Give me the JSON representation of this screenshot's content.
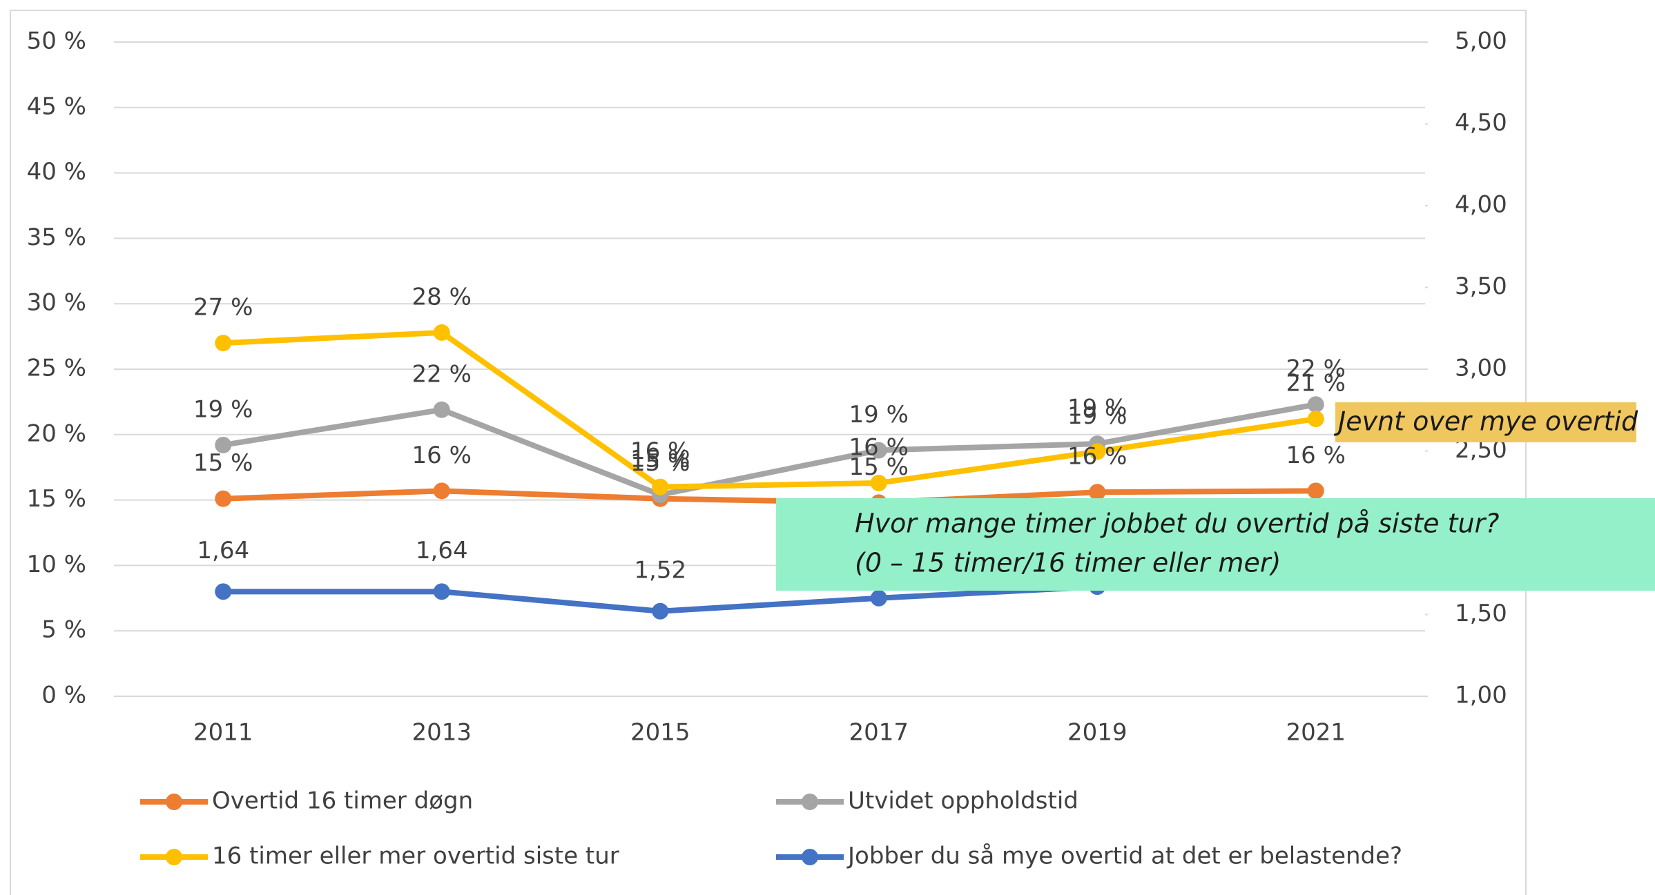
{
  "chart_data": {
    "type": "line",
    "categories": [
      "2011",
      "2013",
      "2015",
      "2017",
      "2019",
      "2021"
    ],
    "ylim": [
      0,
      50
    ],
    "yticks": [
      {
        "value": 0,
        "label": "0 %"
      },
      {
        "value": 5,
        "label": "5 %"
      },
      {
        "value": 10,
        "label": "10 %"
      },
      {
        "value": 15,
        "label": "15 %"
      },
      {
        "value": 20,
        "label": "20 %"
      },
      {
        "value": 25,
        "label": "25 %"
      },
      {
        "value": 30,
        "label": "30 %"
      },
      {
        "value": 35,
        "label": "35 %"
      },
      {
        "value": 40,
        "label": "40 %"
      },
      {
        "value": 45,
        "label": "45 %"
      },
      {
        "value": 50,
        "label": "50 %"
      }
    ],
    "y2lim": [
      1,
      5
    ],
    "y2ticks": [
      {
        "value": 1,
        "label": "1,00"
      },
      {
        "value": 1.5,
        "label": "1,50"
      },
      {
        "value": 2,
        "label": "2,00"
      },
      {
        "value": 2.5,
        "label": "2,50"
      },
      {
        "value": 3,
        "label": "3,00"
      },
      {
        "value": 3.5,
        "label": "3,50"
      },
      {
        "value": 4,
        "label": "4,00"
      },
      {
        "value": 4.5,
        "label": "4,50"
      },
      {
        "value": 5,
        "label": "5,00"
      }
    ],
    "grid": true,
    "series": [
      {
        "name": "Overtid 16 timer døgn",
        "color": "#ED7D31",
        "values": [
          15.1,
          15.7,
          15.1,
          14.8,
          15.6,
          15.7
        ],
        "value_labels": [
          "15 %",
          "16 %",
          "15 %",
          "15 %",
          "16 %",
          "16 %"
        ]
      },
      {
        "name": "Utvidet oppholdstid",
        "color": "#A5A5A5",
        "values": [
          19.2,
          21.9,
          15.4,
          18.8,
          19.3,
          22.3
        ],
        "value_labels": [
          "19 %",
          "22 %",
          "15 %",
          "19 %",
          "19 %",
          "22 %"
        ]
      },
      {
        "name": "16 timer eller mer overtid siste tur",
        "color": "#FFC000",
        "values": [
          27,
          27.8,
          16,
          16.3,
          18.7,
          21.2
        ],
        "value_labels": [
          "27 %",
          "28 %",
          "16 %",
          "16 %",
          "19 %",
          "21 %"
        ]
      },
      {
        "name": "Jobber du så mye overtid at det er belastende?",
        "color": "#4472C4",
        "axis": "y2",
        "values": [
          1.64,
          1.64,
          1.52,
          1.6,
          1.67,
          null
        ],
        "value_labels": [
          "1,64",
          "1,64",
          "1,52",
          null,
          null,
          null
        ]
      }
    ],
    "annotations": [
      "Jevnt over mye overtid",
      "Hvor mange timer jobbet du overtid på siste tur?",
      "(0 – 15 timer/16 timer eller mer)"
    ]
  }
}
